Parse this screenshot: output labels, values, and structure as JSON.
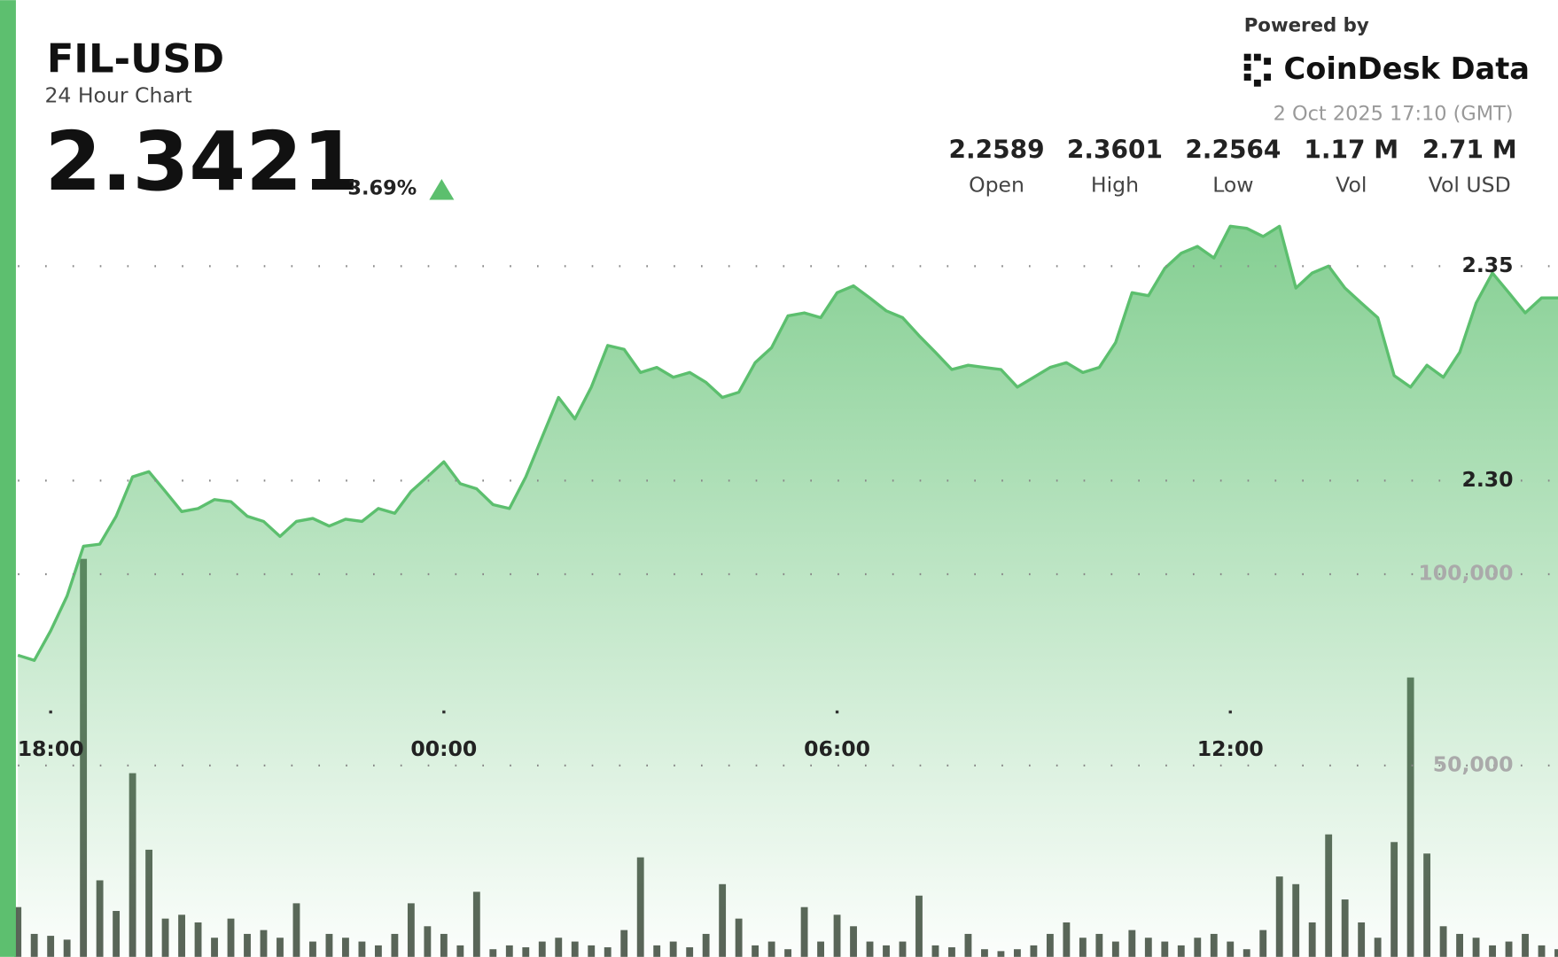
{
  "header": {
    "title": "FIL-USD",
    "subtitle": "24 Hour Chart",
    "price": "2.3421",
    "change": "3.69%",
    "powered_by": "Powered by",
    "brand": "CoinDesk Data",
    "timestamp": "2 Oct 2025 17:10 (GMT)",
    "stats": [
      {
        "value": "2.2589",
        "label": "Open"
      },
      {
        "value": "2.3601",
        "label": "High"
      },
      {
        "value": "2.2564",
        "label": "Low"
      },
      {
        "value": "1.17 M",
        "label": "Vol"
      },
      {
        "value": "2.71 M",
        "label": "Vol USD"
      }
    ]
  },
  "chart_data": {
    "type": "line",
    "x": [
      "17:30",
      "17:45",
      "18:00",
      "18:15",
      "18:30",
      "18:45",
      "19:00",
      "19:15",
      "19:30",
      "19:45",
      "20:00",
      "20:15",
      "20:30",
      "20:45",
      "21:00",
      "21:15",
      "21:30",
      "21:45",
      "22:00",
      "22:15",
      "22:30",
      "22:45",
      "23:00",
      "23:15",
      "23:30",
      "23:45",
      "00:00",
      "00:15",
      "00:30",
      "00:45",
      "01:00",
      "01:15",
      "01:30",
      "01:45",
      "02:00",
      "02:15",
      "02:30",
      "02:45",
      "03:00",
      "03:15",
      "03:30",
      "03:45",
      "04:00",
      "04:15",
      "04:30",
      "04:45",
      "05:00",
      "05:15",
      "05:30",
      "05:45",
      "06:00",
      "06:15",
      "06:30",
      "06:45",
      "07:00",
      "07:15",
      "07:30",
      "07:45",
      "08:00",
      "08:15",
      "08:30",
      "08:45",
      "09:00",
      "09:15",
      "09:30",
      "09:45",
      "10:00",
      "10:15",
      "10:30",
      "10:45",
      "11:00",
      "11:15",
      "11:30",
      "11:45",
      "12:00",
      "12:15",
      "12:30",
      "12:45",
      "13:00",
      "13:15",
      "13:30",
      "13:45",
      "14:00",
      "14:15",
      "14:30",
      "14:45",
      "15:00",
      "15:15",
      "15:30",
      "15:45",
      "16:00",
      "16:15",
      "16:30",
      "16:45",
      "17:00"
    ],
    "xticks": [
      "18:00",
      "00:00",
      "06:00",
      "12:00"
    ],
    "series": [
      {
        "color": "#5cbf6e",
        "values": [
          2.2593,
          2.2581,
          2.265,
          2.2731,
          2.2847,
          2.2852,
          2.2917,
          2.3009,
          2.3021,
          2.2975,
          2.2928,
          2.2935,
          2.2956,
          2.2951,
          2.2917,
          2.2905,
          2.287,
          2.2905,
          2.2912,
          2.2894,
          2.291,
          2.2905,
          2.2935,
          2.2924,
          2.2975,
          2.3009,
          2.3044,
          2.2993,
          2.2981,
          2.2944,
          2.2935,
          2.3009,
          2.3102,
          2.3194,
          2.3144,
          2.3218,
          2.3315,
          2.3306,
          2.3252,
          2.3264,
          2.3241,
          2.3252,
          2.3229,
          2.3194,
          2.3206,
          2.3275,
          2.331,
          2.3384,
          2.3391,
          2.338,
          2.3438,
          2.3454,
          2.3426,
          2.3396,
          2.338,
          2.3338,
          2.3299,
          2.3259,
          2.3269,
          2.3264,
          2.3259,
          2.3218,
          2.3241,
          2.3264,
          2.3275,
          2.3252,
          2.3264,
          2.3322,
          2.3438,
          2.3431,
          2.3495,
          2.353,
          2.3546,
          2.3519,
          2.3593,
          2.3588,
          2.3569,
          2.3593,
          2.3449,
          2.3484,
          2.35,
          2.3449,
          2.3414,
          2.338,
          2.3245,
          2.3218,
          2.3269,
          2.3241,
          2.3299,
          2.3414,
          2.3484,
          2.3438,
          2.3391,
          2.3426,
          2.3426
        ]
      },
      {
        "type": "bar",
        "axis": "y2",
        "color": "#596257",
        "values": [
          13000,
          6000,
          5500,
          4500,
          104000,
          20000,
          12000,
          48000,
          28000,
          10000,
          11000,
          9000,
          5000,
          10000,
          6000,
          7000,
          5000,
          14000,
          4000,
          6000,
          5000,
          4000,
          3000,
          6000,
          14000,
          8000,
          6000,
          3000,
          17000,
          2000,
          3000,
          2500,
          4000,
          5000,
          4000,
          3000,
          2500,
          7000,
          26000,
          3000,
          4000,
          2500,
          6000,
          19000,
          10000,
          3000,
          4000,
          2000,
          13000,
          4000,
          11000,
          8000,
          4000,
          3000,
          4000,
          16000,
          3000,
          2500,
          6000,
          2000,
          1500,
          2000,
          3000,
          6000,
          9000,
          5000,
          6000,
          4000,
          7000,
          5000,
          4000,
          3000,
          5000,
          6000,
          4000,
          2000,
          7000,
          21000,
          19000,
          9000,
          32000,
          15000,
          9000,
          5000,
          30000,
          73000,
          27000,
          8000,
          6000,
          5000,
          3000,
          4000,
          6000,
          3000,
          2000
        ]
      }
    ],
    "ylim": [
      2.189,
      2.412
    ],
    "yticks": [
      {
        "value": 2.3,
        "label": "2.30"
      },
      2.35
    ],
    "y2lim": [
      0,
      250000
    ],
    "y2ticks": [
      {
        "value": 50000,
        "label": "50,000"
      },
      {
        "value": 100000,
        "label": "100,000"
      }
    ],
    "grid": true
  }
}
